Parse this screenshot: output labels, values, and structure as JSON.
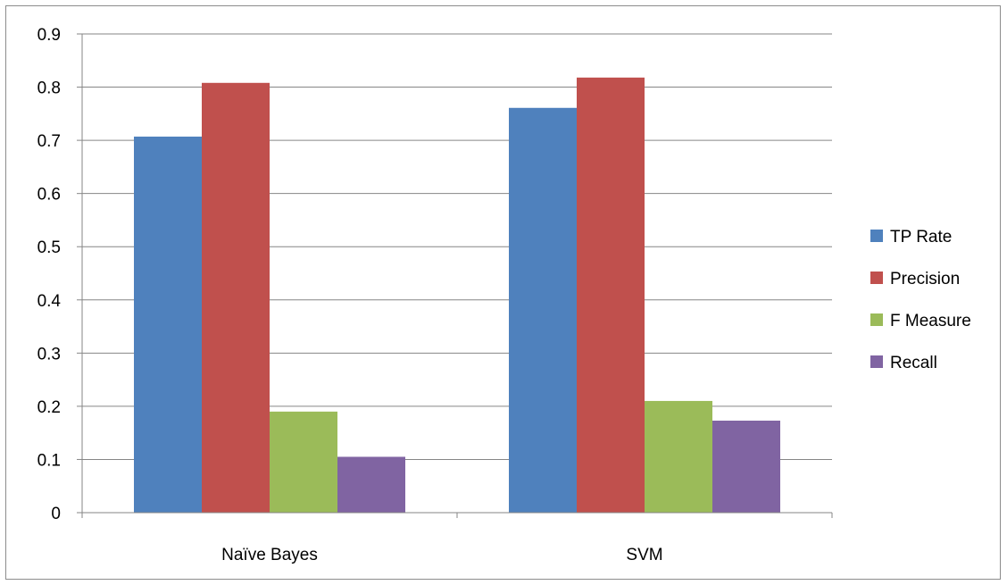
{
  "chart_data": {
    "type": "bar",
    "title": "",
    "xlabel": "",
    "ylabel": "",
    "categories": [
      "Naïve Bayes",
      "SVM"
    ],
    "series": [
      {
        "name": "TP Rate",
        "color": "#4f81bd",
        "values": [
          0.707,
          0.761
        ]
      },
      {
        "name": "Precision",
        "color": "#c0504d",
        "values": [
          0.808,
          0.818
        ]
      },
      {
        "name": "F Measure",
        "color": "#9bbb59",
        "values": [
          0.19,
          0.21
        ]
      },
      {
        "name": "Recall",
        "color": "#8064a2",
        "values": [
          0.105,
          0.173
        ]
      }
    ],
    "ylim": [
      0,
      0.9
    ],
    "yticks": [
      "0",
      "0.1",
      "0.2",
      "0.3",
      "0.4",
      "0.5",
      "0.6",
      "0.7",
      "0.8",
      "0.9"
    ],
    "grid": true,
    "legend_position": "right"
  }
}
